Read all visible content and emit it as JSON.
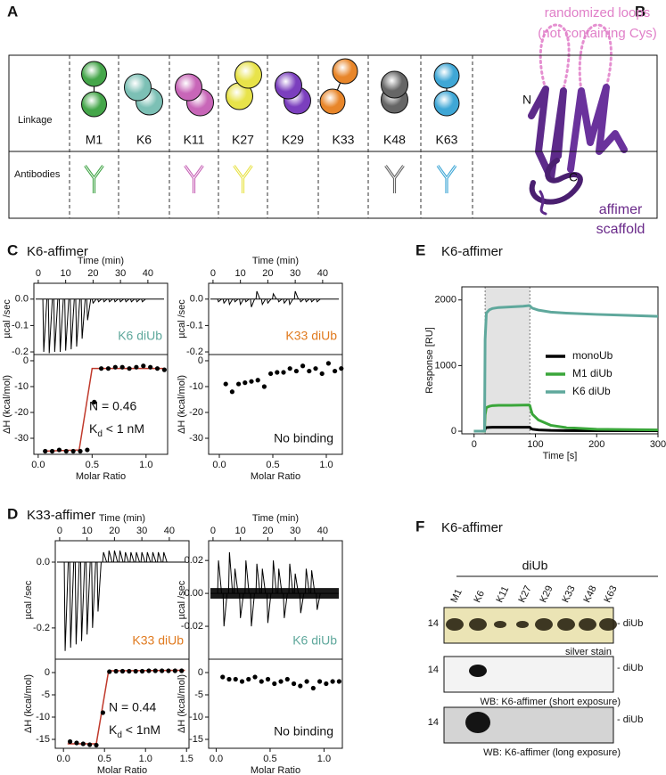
{
  "figure": {
    "panel_labels": [
      "A",
      "B",
      "C",
      "D",
      "E",
      "F"
    ],
    "titles": {
      "C": "K6-affimer",
      "D": "K33-affimer",
      "E": "K6-affimer",
      "F": "K6-affimer"
    }
  },
  "panel_a": {
    "row_labels": [
      "Linkage",
      "Antibodies"
    ],
    "linkages": [
      {
        "name": "M1",
        "color": "#45a64a",
        "antibody": true
      },
      {
        "name": "K6",
        "color": "#7cc0b5",
        "antibody": false
      },
      {
        "name": "K11",
        "color": "#c866b8",
        "antibody": true
      },
      {
        "name": "K27",
        "color": "#e8e34a",
        "antibody": true
      },
      {
        "name": "K29",
        "color": "#7b3fbe",
        "antibody": false
      },
      {
        "name": "K33",
        "color": "#e8862a",
        "antibody": false
      },
      {
        "name": "K48",
        "color": "#666666",
        "antibody": true
      },
      {
        "name": "K63",
        "color": "#3fa7d6",
        "antibody": true
      }
    ]
  },
  "panel_b": {
    "loops": [
      "randomized loops",
      "(not containing Cys)"
    ],
    "n_label": "N",
    "c_label": "C",
    "scaffold": [
      "affimer",
      "scaffold"
    ]
  },
  "panel_f": {
    "header": "diUb",
    "lanes": [
      "M1",
      "K6",
      "K11",
      "K27",
      "K29",
      "K33",
      "K48",
      "K63"
    ],
    "marker": "14",
    "band_label": "- diUb",
    "blots": [
      "silver stain",
      "WB: K6-affimer (short exposure)",
      "WB: K6-affimer (long exposure)"
    ]
  },
  "chart_data": [
    {
      "type": "spikes",
      "xlabel": "Time (min)",
      "ylabel": "µcal /sec",
      "xaxis": "top",
      "xlim": [
        -1.6,
        47.2
      ],
      "xticks": [
        0,
        10,
        20,
        30,
        40
      ],
      "ylim": [
        -0.21,
        0.06
      ],
      "yticks": [
        {
          "value": 0,
          "label": "0.0"
        },
        -0.1,
        -0.2
      ],
      "x": [
        2,
        4,
        6,
        8,
        10,
        12,
        14,
        16,
        18,
        20,
        22,
        24,
        26,
        28,
        30,
        32,
        34,
        36,
        38
      ],
      "values": [
        -0.2,
        -0.205,
        -0.2,
        -0.2,
        -0.195,
        -0.19,
        -0.18,
        -0.15,
        -0.08,
        -0.015,
        -0.01,
        -0.01,
        -0.01,
        -0.01,
        -0.01,
        -0.01,
        -0.01,
        -0.01,
        -0.01
      ],
      "color": "#000000",
      "annotations": [
        {
          "text": "K6 diUb",
          "color": "#5fa89c"
        }
      ]
    },
    {
      "type": "scatter",
      "xlabel": "Molar Ratio",
      "ylabel": "ΔH (kcal/mol)",
      "xlim": [
        -0.04,
        1.2
      ],
      "xticks": [
        {
          "value": 0,
          "label": "0.0"
        },
        0.5,
        {
          "value": 1,
          "label": "1.0"
        }
      ],
      "ylim": [
        -36.2,
        2.4
      ],
      "yticks": [
        0,
        -10,
        -20,
        -30
      ],
      "series": [
        {
          "style": "line",
          "color": "#c0392b",
          "x": [
            0.05,
            0.38,
            0.5,
            1.17
          ],
          "values": [
            -35,
            -34.5,
            -3,
            -3
          ]
        },
        {
          "style": "points",
          "color": "#000000",
          "x": [
            0.065,
            0.13,
            0.195,
            0.26,
            0.325,
            0.39,
            0.455,
            0.52,
            0.585,
            0.65,
            0.715,
            0.78,
            0.845,
            0.91,
            0.975,
            1.04,
            1.105,
            1.17
          ],
          "values": [
            -35,
            -35,
            -34.5,
            -35,
            -35,
            -35,
            -34.5,
            -16,
            -3,
            -3,
            -2.5,
            -2.5,
            -3,
            -2.5,
            -2,
            -2.5,
            -3,
            -3.5
          ]
        }
      ],
      "annotations": [
        {
          "text": "N = 0.46"
        },
        {
          "text": "K",
          "sub": "d",
          "rest": " < 1 nM"
        }
      ]
    },
    {
      "type": "spikes",
      "xlabel": "Time (min)",
      "ylabel": "µcal /sec",
      "xaxis": "top",
      "xlim": [
        -1.6,
        47.2
      ],
      "xticks": [
        0,
        10,
        20,
        30,
        40
      ],
      "ylim": [
        -0.21,
        0.06
      ],
      "yticks": [
        {
          "value": 0,
          "label": "0.0"
        },
        -0.1,
        -0.2
      ],
      "x": [
        2,
        4,
        6,
        8,
        10,
        12,
        14,
        16,
        18,
        20,
        22,
        24,
        26,
        28,
        30,
        32,
        34,
        36,
        38
      ],
      "values": [
        -0.01,
        -0.015,
        -0.02,
        -0.01,
        -0.02,
        -0.01,
        -0.03,
        0.03,
        -0.02,
        -0.015,
        0.02,
        -0.01,
        -0.015,
        -0.02,
        0.03,
        -0.01,
        -0.01,
        -0.01,
        -0.01
      ],
      "color": "#000000",
      "annotations": [
        {
          "text": "K33 diUb",
          "color": "#e07a1f"
        }
      ]
    },
    {
      "type": "scatter",
      "xlabel": "Molar Ratio",
      "ylabel": "ΔH (kcal/mol)",
      "xlim": [
        -0.1,
        1.15
      ],
      "xticks": [
        {
          "value": 0,
          "label": "0.0"
        },
        0.5,
        {
          "value": 1,
          "label": "1.0"
        }
      ],
      "ylim": [
        -36.2,
        2.4
      ],
      "yticks": [
        0,
        -10,
        -20,
        -30
      ],
      "series": [
        {
          "style": "points",
          "color": "#000000",
          "x": [
            0.06,
            0.12,
            0.18,
            0.24,
            0.3,
            0.36,
            0.42,
            0.48,
            0.54,
            0.6,
            0.66,
            0.72,
            0.78,
            0.84,
            0.9,
            0.96,
            1.02,
            1.08,
            1.14
          ],
          "values": [
            -9,
            -12,
            -9,
            -8.5,
            -8,
            -7.5,
            -10,
            -5,
            -4.5,
            -4.5,
            -3,
            -4,
            -2,
            -4,
            -3,
            -5,
            -1,
            -4,
            -3
          ]
        }
      ],
      "annotations": [
        {
          "text": "No binding"
        }
      ]
    },
    {
      "type": "spikes",
      "xlabel": "Time (min)",
      "ylabel": "µcal /sec",
      "xaxis": "top",
      "xlim": [
        -1.6,
        47.2
      ],
      "xticks": [
        0,
        10,
        20,
        30,
        40
      ],
      "ylim": [
        -0.295,
        0.065
      ],
      "yticks": [
        {
          "value": 0,
          "label": "0.0"
        },
        -0.2
      ],
      "x": [
        2,
        4,
        6,
        8,
        10,
        12,
        14,
        16,
        18,
        20,
        22,
        24,
        26,
        28,
        30,
        32,
        34,
        36,
        38
      ],
      "values": [
        -0.27,
        -0.26,
        -0.25,
        -0.24,
        -0.22,
        -0.2,
        -0.15,
        0.03,
        0.035,
        0.035,
        0.035,
        0.03,
        0.03,
        0.03,
        0.03,
        0.03,
        0.03,
        0.03,
        0.03
      ],
      "color": "#000000",
      "annotations": [
        {
          "text": "K33 diUb",
          "color": "#e07a1f"
        }
      ]
    },
    {
      "type": "scatter",
      "xlabel": "Molar Ratio",
      "ylabel": "ΔH (kcal/mol)",
      "xlim": [
        -0.1,
        1.53
      ],
      "xticks": [
        {
          "value": 0,
          "label": "0.0"
        },
        0.5,
        {
          "value": 1,
          "label": "1.0"
        },
        1.5
      ],
      "ylim": [
        -17,
        3
      ],
      "yticks": [
        0,
        -5,
        -10,
        -15
      ],
      "series": [
        {
          "style": "line",
          "color": "#c0392b",
          "x": [
            0.05,
            0.4,
            0.55,
            1.48
          ],
          "values": [
            -16,
            -16,
            0.4,
            0.5
          ]
        },
        {
          "style": "points",
          "color": "#000000",
          "x": [
            0.08,
            0.16,
            0.24,
            0.32,
            0.4,
            0.48,
            0.56,
            0.64,
            0.72,
            0.8,
            0.88,
            0.96,
            1.04,
            1.12,
            1.2,
            1.28,
            1.36,
            1.44
          ],
          "values": [
            -15.5,
            -15.8,
            -16,
            -16.2,
            -16.3,
            -9,
            0.2,
            0.3,
            0.3,
            0.3,
            0.3,
            0.3,
            0.4,
            0.4,
            0.4,
            0.4,
            0.4,
            0.4
          ]
        }
      ],
      "annotations": [
        {
          "text": "N = 0.44"
        },
        {
          "text": "K",
          "sub": "d",
          "rest": " < 1nM"
        }
      ]
    },
    {
      "type": "spikes",
      "xlabel": "Time (min)",
      "ylabel": "µcal /sec",
      "xaxis": "top",
      "xlim": [
        -1.6,
        47.2
      ],
      "xticks": [
        0,
        10,
        20,
        30,
        40
      ],
      "ylim": [
        -0.04,
        0.032
      ],
      "yticks": [
        0.02,
        {
          "value": 0,
          "label": "0.00"
        },
        -0.02
      ],
      "x": [
        2,
        4,
        6,
        8,
        10,
        12,
        14,
        16,
        18,
        20,
        22,
        24,
        26,
        28,
        30,
        32,
        34,
        36,
        38
      ],
      "values": [
        0.02,
        -0.02,
        0.025,
        0.015,
        -0.015,
        0.02,
        -0.02,
        0.018,
        0.015,
        -0.018,
        0.02,
        0.015,
        -0.015,
        0.018,
        0.012,
        -0.012,
        0.015,
        0.014,
        -0.01
      ],
      "color": "#000000",
      "annotations": [
        {
          "text": "K6 diUb",
          "color": "#5fa89c"
        }
      ]
    },
    {
      "type": "scatter",
      "xlabel": "Molar Ratio",
      "ylabel": "ΔH (kcal/mol)",
      "xlim": [
        -0.07,
        1.17
      ],
      "xticks": [
        {
          "value": 0,
          "label": "0.0"
        },
        0.5,
        {
          "value": 1,
          "label": "1.0"
        }
      ],
      "ylim": [
        -17,
        3
      ],
      "yticks": [
        0,
        -5,
        -10,
        -15
      ],
      "series": [
        {
          "style": "points",
          "color": "#000000",
          "x": [
            0.06,
            0.12,
            0.18,
            0.24,
            0.3,
            0.36,
            0.42,
            0.48,
            0.54,
            0.6,
            0.66,
            0.72,
            0.78,
            0.84,
            0.9,
            0.96,
            1.02,
            1.08,
            1.14
          ],
          "values": [
            -1,
            -1.5,
            -1.5,
            -2,
            -1.5,
            -1,
            -2,
            -1.5,
            -2.5,
            -2,
            -1.5,
            -2.5,
            -3,
            -2,
            -3.5,
            -2,
            -2.5,
            -2,
            -2
          ]
        }
      ],
      "annotations": [
        {
          "text": "No binding"
        }
      ]
    },
    {
      "type": "line",
      "xlabel": "Time [s]",
      "ylabel": "Response [RU]",
      "legend": "right",
      "xlim": [
        -20,
        300
      ],
      "xticks": [
        0,
        100,
        200,
        300
      ],
      "ylim": [
        -40,
        2200
      ],
      "yticks": [
        0,
        1000,
        2000
      ],
      "shaded_region": [
        18,
        91
      ],
      "x": [
        0,
        10,
        17,
        18,
        20,
        25,
        30,
        40,
        60,
        80,
        90,
        91,
        93,
        95,
        105,
        125,
        150,
        200,
        250,
        300
      ],
      "series": [
        {
          "name": "monoUb",
          "color": "#000000",
          "values": [
            0,
            0,
            1,
            40,
            55,
            58,
            60,
            60,
            60,
            60,
            60,
            58,
            40,
            30,
            20,
            12,
            10,
            8,
            8,
            8
          ]
        },
        {
          "name": "M1 diUb",
          "color": "#3aa63a",
          "values": [
            0,
            0,
            3,
            250,
            360,
            380,
            390,
            395,
            395,
            398,
            400,
            390,
            320,
            260,
            170,
            90,
            55,
            30,
            25,
            20
          ]
        },
        {
          "name": "K6 diUb",
          "color": "#5fa89c",
          "values": [
            0,
            0,
            5,
            1400,
            1800,
            1850,
            1870,
            1885,
            1895,
            1905,
            1915,
            1910,
            1890,
            1875,
            1845,
            1815,
            1800,
            1780,
            1765,
            1750
          ]
        }
      ]
    }
  ]
}
